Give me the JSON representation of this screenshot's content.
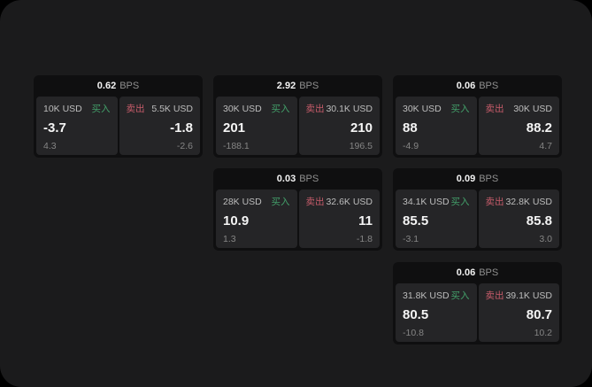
{
  "labels": {
    "bps_unit": "BPS",
    "buy": "买入",
    "sell": "卖出"
  },
  "colors": {
    "page_background": "#1b1b1c",
    "card_background": "#0f0f10",
    "panel_background": "#252527",
    "buy_green": "#43a06a",
    "sell_red": "#c75c6a"
  },
  "cards": [
    {
      "bps": "0.62",
      "buy": {
        "amount": "10K USD",
        "price": "-3.7",
        "delta": "4.3"
      },
      "sell": {
        "amount": "5.5K USD",
        "price": "-1.8",
        "delta": "-2.6"
      }
    },
    {
      "bps": "2.92",
      "buy": {
        "amount": "30K USD",
        "price": "201",
        "delta": "-188.1"
      },
      "sell": {
        "amount": "30.1K USD",
        "price": "210",
        "delta": "196.5"
      }
    },
    {
      "bps": "0.06",
      "buy": {
        "amount": "30K USD",
        "price": "88",
        "delta": "-4.9"
      },
      "sell": {
        "amount": "30K USD",
        "price": "88.2",
        "delta": "4.7"
      }
    },
    {
      "bps": "0.03",
      "buy": {
        "amount": "28K USD",
        "price": "10.9",
        "delta": "1.3"
      },
      "sell": {
        "amount": "32.6K USD",
        "price": "11",
        "delta": "-1.8"
      }
    },
    {
      "bps": "0.09",
      "buy": {
        "amount": "34.1K USD",
        "price": "85.5",
        "delta": "-3.1"
      },
      "sell": {
        "amount": "32.8K USD",
        "price": "85.8",
        "delta": "3.0"
      }
    },
    {
      "bps": "0.06",
      "buy": {
        "amount": "31.8K USD",
        "price": "80.5",
        "delta": "-10.8"
      },
      "sell": {
        "amount": "39.1K USD",
        "price": "80.7",
        "delta": "10.2"
      }
    }
  ]
}
